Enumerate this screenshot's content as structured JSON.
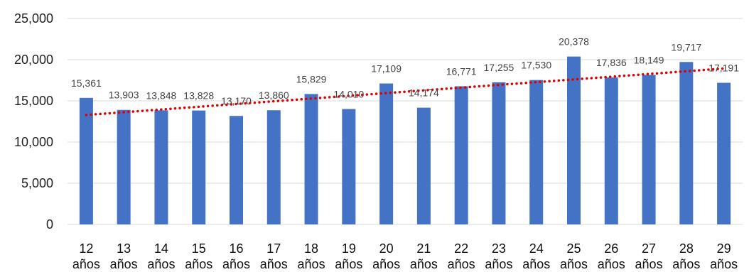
{
  "chart_data": {
    "type": "bar",
    "categories": [
      "12 años",
      "13 años",
      "14 años",
      "15 años",
      "16 años",
      "17 años",
      "18 años",
      "19 años",
      "20 años",
      "21 años",
      "22 años",
      "23 años",
      "24 años",
      "25 años",
      "26 años",
      "27 años",
      "28 años",
      "29 años"
    ],
    "values": [
      15361,
      13903,
      13848,
      13828,
      13170,
      13860,
      15829,
      14010,
      17109,
      14174,
      16771,
      17255,
      17530,
      20378,
      17836,
      18149,
      19717,
      17191
    ],
    "data_labels": [
      "15,361",
      "13,903",
      "13,848",
      "13,828",
      "13,170",
      "13,860",
      "15,829",
      "14,010",
      "17,109",
      "14,174",
      "16,771",
      "17,255",
      "17,530",
      "20,378",
      "17,836",
      "18,149",
      "19,717",
      "17,191"
    ],
    "ylim": [
      0,
      25000
    ],
    "yticks": [
      0,
      5000,
      10000,
      15000,
      20000,
      25000
    ],
    "ytick_labels": [
      "0",
      "5,000",
      "10,000",
      "15,000",
      "20,000",
      "25,000"
    ],
    "trendline": {
      "type": "linear",
      "style": "dotted"
    },
    "grid": "horizontal",
    "legend": "none",
    "title": "",
    "xlabel": "",
    "ylabel": "",
    "colors": {
      "bar": "#4472C4",
      "trendline": "#E00000",
      "grid": "#D9D9D9"
    }
  }
}
